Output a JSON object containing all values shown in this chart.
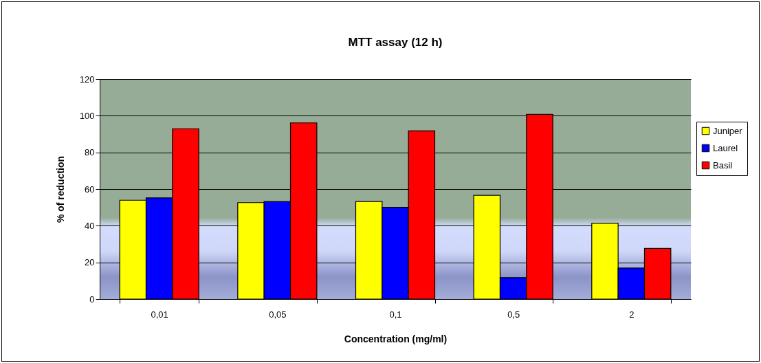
{
  "chart_data": {
    "type": "bar",
    "title": "MTT assay  (12 h)",
    "xlabel": "Concentration (mg/ml)",
    "ylabel": "% of reduction",
    "categories": [
      "0,01",
      "0,05",
      "0,1",
      "0,5",
      "2"
    ],
    "series": [
      {
        "name": "Juniper",
        "color": "#ffff00",
        "values": [
          53.9,
          52.6,
          53.2,
          56.6,
          41.4
        ]
      },
      {
        "name": "Laurel",
        "color": "#0000ff",
        "values": [
          55.2,
          53.2,
          50.0,
          11.7,
          16.9
        ]
      },
      {
        "name": "Basil",
        "color": "#ff0000",
        "values": [
          92.9,
          96.1,
          91.7,
          100.7,
          27.6
        ]
      }
    ],
    "ylim": [
      0,
      120
    ],
    "yticks": [
      0,
      20,
      40,
      60,
      80,
      100,
      120
    ],
    "grid": "y",
    "legend": "right"
  }
}
